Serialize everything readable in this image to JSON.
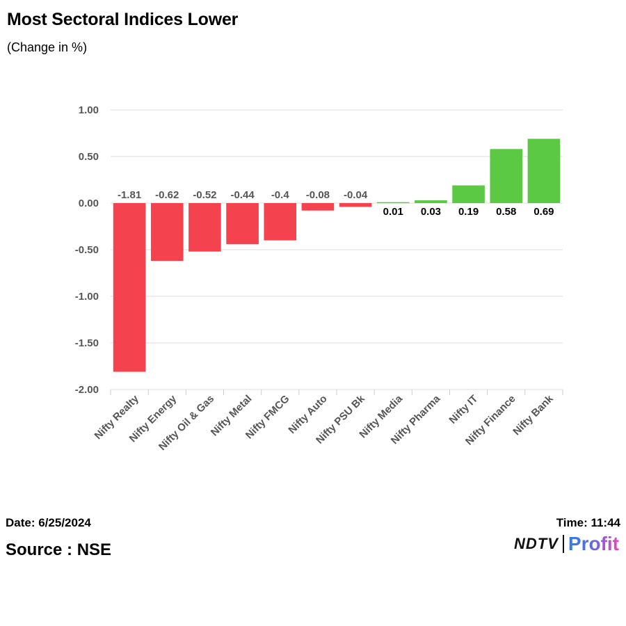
{
  "title": "Most Sectoral Indices Lower",
  "subtitle": "(Change in %)",
  "footer": {
    "date": "Date: 6/25/2024",
    "time": "Time: 11:44",
    "source": "Source : NSE",
    "logo_brand": "NDTV",
    "logo_product": "Profit"
  },
  "colors": {
    "negative": "#f5424f",
    "positive": "#5cc945",
    "negative_label": "#555555",
    "positive_label": "#000000",
    "grid": "#dddddd",
    "axis_text": "#555555"
  },
  "chart_data": {
    "type": "bar",
    "title": "Most Sectoral Indices Lower",
    "ylabel": "Change in %",
    "xlabel": "",
    "ylim": [
      -2.0,
      1.0
    ],
    "yticks": [
      1.0,
      0.5,
      0.0,
      -0.5,
      -1.0,
      -1.5,
      -2.0
    ],
    "ytick_labels": [
      "1.00",
      "0.50",
      "0.00",
      "-0.50",
      "-1.00",
      "-1.50",
      "-2.00"
    ],
    "categories": [
      "Nifty Realty",
      "Nifty Energy",
      "Nifty Oil & Gas",
      "Nifty Metal",
      "Nifty FMCG",
      "Nifty Auto",
      "Nifty PSU Bk",
      "Nifty Media",
      "Nifty Pharma",
      "Nifty IT",
      "Nifty Finance",
      "Nifty Bank"
    ],
    "values": [
      -1.81,
      -0.62,
      -0.52,
      -0.44,
      -0.4,
      -0.08,
      -0.04,
      0.01,
      0.03,
      0.19,
      0.58,
      0.69
    ],
    "value_labels": [
      "-1.81",
      "-0.62",
      "-0.52",
      "-0.44",
      "-0.4",
      "-0.08",
      "-0.04",
      "0.01",
      "0.03",
      "0.19",
      "0.58",
      "0.69"
    ],
    "grid": true,
    "legend": "none"
  }
}
